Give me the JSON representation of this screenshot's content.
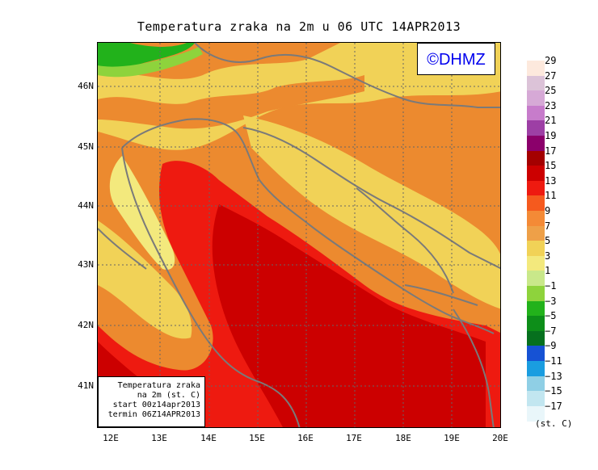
{
  "title": "Temperatura zraka na 2m u 06 UTC 14APR2013",
  "logo": "©DHMZ",
  "info_box": {
    "line1": "Temperatura zraka",
    "line2": "na 2m (st. C)",
    "line3": "start 00z14apr2013",
    "line4": "termin 06Z14APR2013"
  },
  "lat_labels": [
    "46N",
    "45N",
    "44N",
    "43N",
    "42N",
    "41N"
  ],
  "lon_labels": [
    "12E",
    "13E",
    "14E",
    "15E",
    "16E",
    "17E",
    "18E",
    "19E",
    "20E"
  ],
  "legend": {
    "unit": "(st. C)",
    "labels": [
      "29",
      "27",
      "25",
      "23",
      "21",
      "19",
      "17",
      "15",
      "13",
      "11",
      "9",
      "7",
      "5",
      "3",
      "1",
      "−1",
      "−3",
      "−5",
      "−7",
      "−9",
      "−11",
      "−13",
      "−15",
      "−17"
    ],
    "colors": [
      "#fde9dd",
      "#dcc3d8",
      "#d6a9d6",
      "#c77ccb",
      "#9d3fa5",
      "#8b006b",
      "#a40000",
      "#cc0000",
      "#ee1a10",
      "#f55a1e",
      "#f48a36",
      "#eea048",
      "#f1d257",
      "#f3e97d",
      "#c9e88a",
      "#8ed33c",
      "#22b21b",
      "#0d8e19",
      "#06701e",
      "#1652d4",
      "#1a9de0",
      "#8fcfe5",
      "#c2e6f0",
      "#e9f6fa"
    ]
  },
  "colors": {
    "sea_warm": "#cc0000",
    "sea_deep": "#c00000",
    "coast_orange": "#f07828",
    "land_yellow": "#f1d257",
    "land_orange": "#ec8a2f",
    "coastline": "#7a7a7a"
  }
}
